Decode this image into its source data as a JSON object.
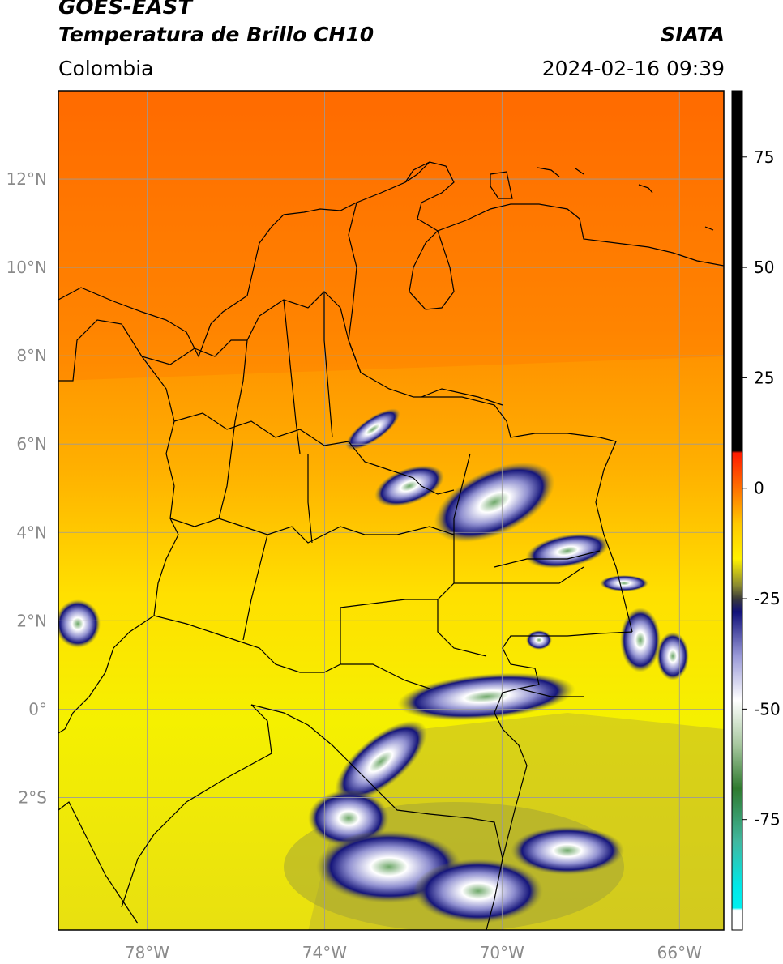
{
  "header": {
    "satellite": "GOES-EAST",
    "product": "Temperatura de Brillo CH10",
    "region": "Colombia",
    "source": "SIATA",
    "datetime": "2024-02-16 09:39"
  },
  "map": {
    "lon_range": [
      -80,
      -65
    ],
    "lat_range": [
      -5,
      14
    ],
    "lon_ticks": [
      {
        "value": -78,
        "label": "78°W"
      },
      {
        "value": -74,
        "label": "74°W"
      },
      {
        "value": -70,
        "label": "70°W"
      },
      {
        "value": -66,
        "label": "66°W"
      }
    ],
    "lat_ticks": [
      {
        "value": 12,
        "label": "12°N"
      },
      {
        "value": 10,
        "label": "10°N"
      },
      {
        "value": 8,
        "label": "8°N"
      },
      {
        "value": 6,
        "label": "6°N"
      },
      {
        "value": 4,
        "label": "4°N"
      },
      {
        "value": 2,
        "label": "2°N"
      },
      {
        "value": 0,
        "label": "0°"
      },
      {
        "value": -2,
        "label": "2°S"
      }
    ],
    "grid": true
  },
  "colorbar": {
    "range": [
      -100,
      90
    ],
    "ticks": [
      {
        "value": 75,
        "label": "75"
      },
      {
        "value": 50,
        "label": "50"
      },
      {
        "value": 25,
        "label": "25"
      },
      {
        "value": 0,
        "label": "0"
      },
      {
        "value": -25,
        "label": "-25"
      },
      {
        "value": -50,
        "label": "-50"
      },
      {
        "value": -75,
        "label": "-75"
      }
    ],
    "stops": [
      {
        "value": 90,
        "color": "#000000"
      },
      {
        "value": 8.5,
        "color": "#000000"
      },
      {
        "value": 8,
        "color": "#ff1a00"
      },
      {
        "value": -8,
        "color": "#ffc800"
      },
      {
        "value": -16,
        "color": "#fff200"
      },
      {
        "value": -22,
        "color": "#8a8a30"
      },
      {
        "value": -25,
        "color": "#3a3a3a"
      },
      {
        "value": -28,
        "color": "#10107a"
      },
      {
        "value": -38,
        "color": "#9a9ad8"
      },
      {
        "value": -48,
        "color": "#ffffff"
      },
      {
        "value": -58,
        "color": "#a8c8a0"
      },
      {
        "value": -68,
        "color": "#2f7a2f"
      },
      {
        "value": -80,
        "color": "#40b8a0"
      },
      {
        "value": -90,
        "color": "#00e8e8"
      },
      {
        "value": -95,
        "color": "#00f0f0"
      },
      {
        "value": -95.5,
        "color": "#ffffff"
      },
      {
        "value": -100,
        "color": "#ffffff"
      }
    ]
  }
}
